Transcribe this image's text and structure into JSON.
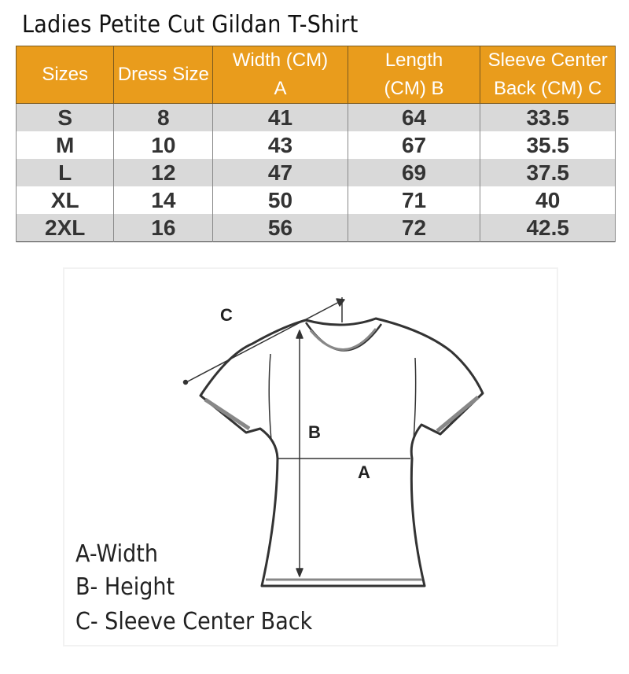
{
  "title": "Ladies Petite Cut Gildan T-Shirt",
  "colors": {
    "header_bg": "#e99c1c",
    "stripe": "#d9d9d9"
  },
  "table": {
    "headers": [
      "Sizes",
      "Dress Size",
      "Width (CM) A",
      "Length (CM) B",
      "Sleeve Center Back (CM) C"
    ],
    "rows": [
      [
        "S",
        "8",
        "41",
        "64",
        "33.5"
      ],
      [
        "M",
        "10",
        "43",
        "67",
        "35.5"
      ],
      [
        "L",
        "12",
        "47",
        "69",
        "37.5"
      ],
      [
        "XL",
        "14",
        "50",
        "71",
        "40"
      ],
      [
        "2XL",
        "16",
        "56",
        "72",
        "42.5"
      ]
    ]
  },
  "diagram": {
    "labels": {
      "a": "A",
      "b": "B",
      "c": "C"
    },
    "legend": [
      "A-Width",
      "B- Height",
      "C- Sleeve Center Back"
    ]
  }
}
